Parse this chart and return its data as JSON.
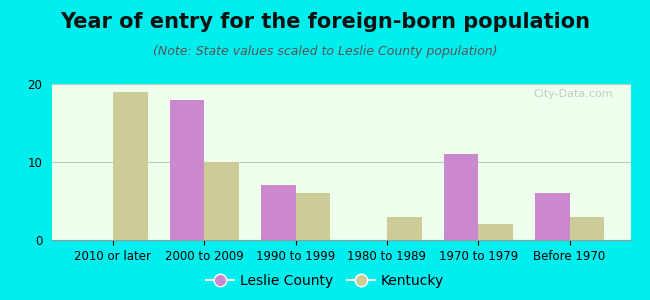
{
  "title": "Year of entry for the foreign-born population",
  "subtitle": "(Note: State values scaled to Leslie County population)",
  "categories": [
    "2010 or later",
    "2000 to 2009",
    "1990 to 1999",
    "1980 to 1989",
    "1970 to 1979",
    "Before 1970"
  ],
  "leslie_county": [
    0,
    18,
    7,
    0,
    11,
    6
  ],
  "kentucky": [
    19,
    10,
    6,
    3,
    2,
    3
  ],
  "leslie_color": "#cc88cc",
  "kentucky_color": "#cccc99",
  "bg_color": "#00eeee",
  "plot_bg_color": "#eeffee",
  "ylim": [
    0,
    20
  ],
  "yticks": [
    0,
    10,
    20
  ],
  "bar_width": 0.38,
  "legend_labels": [
    "Leslie County",
    "Kentucky"
  ],
  "title_fontsize": 15,
  "subtitle_fontsize": 9,
  "tick_fontsize": 8.5,
  "legend_fontsize": 10
}
